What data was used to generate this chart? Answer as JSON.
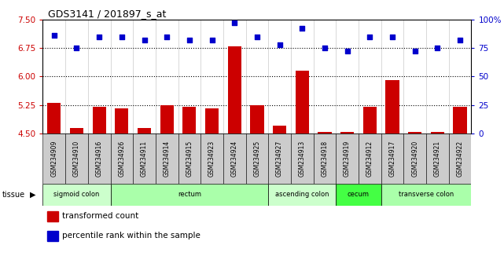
{
  "title": "GDS3141 / 201897_s_at",
  "samples": [
    "GSM234909",
    "GSM234910",
    "GSM234916",
    "GSM234926",
    "GSM234911",
    "GSM234914",
    "GSM234915",
    "GSM234923",
    "GSM234924",
    "GSM234925",
    "GSM234927",
    "GSM234913",
    "GSM234918",
    "GSM234919",
    "GSM234912",
    "GSM234917",
    "GSM234920",
    "GSM234921",
    "GSM234922"
  ],
  "bar_values": [
    5.3,
    4.65,
    5.2,
    5.15,
    4.65,
    5.25,
    5.2,
    5.15,
    6.8,
    5.25,
    4.7,
    6.15,
    4.55,
    4.55,
    5.2,
    5.9,
    4.55,
    4.53,
    5.2
  ],
  "dot_values": [
    86,
    75,
    85,
    85,
    82,
    85,
    82,
    82,
    97,
    85,
    78,
    92,
    75,
    72,
    85,
    85,
    72,
    75,
    82
  ],
  "tissue_groups": [
    {
      "label": "sigmoid colon",
      "start": 0,
      "end": 3,
      "color": "#ccffcc"
    },
    {
      "label": "rectum",
      "start": 3,
      "end": 10,
      "color": "#aaffaa"
    },
    {
      "label": "ascending colon",
      "start": 10,
      "end": 13,
      "color": "#ccffcc"
    },
    {
      "label": "cecum",
      "start": 13,
      "end": 15,
      "color": "#44ff44"
    },
    {
      "label": "transverse colon",
      "start": 15,
      "end": 19,
      "color": "#aaffaa"
    }
  ],
  "ylim_left": [
    4.5,
    7.5
  ],
  "ylim_right": [
    0,
    100
  ],
  "yticks_left": [
    4.5,
    5.25,
    6.0,
    6.75,
    7.5
  ],
  "yticks_right": [
    0,
    25,
    50,
    75,
    100
  ],
  "ytick_labels_right": [
    "0",
    "25",
    "50",
    "75",
    "100%"
  ],
  "hlines": [
    5.25,
    6.0,
    6.75
  ],
  "bar_color": "#cc0000",
  "dot_color": "#0000cc",
  "bar_bottom": 4.5,
  "plot_bg": "#ffffff",
  "xticklabel_bg": "#cccccc"
}
